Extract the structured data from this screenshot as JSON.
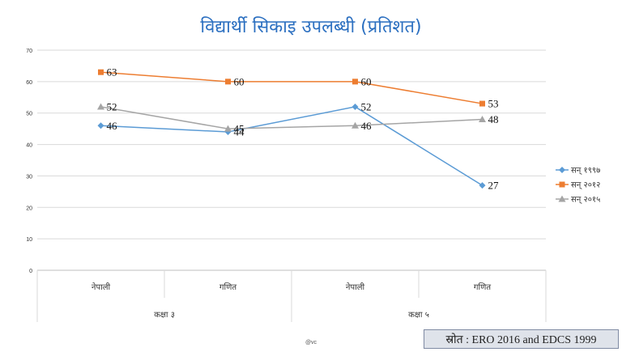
{
  "chart_data": {
    "type": "line",
    "title": "विद्यार्थी सिकाइ उपलब्धी (प्रतिशत)",
    "ylim": [
      0,
      70
    ],
    "yticks": [
      "0",
      "10",
      "20",
      "30",
      "40",
      "50",
      "60",
      "70"
    ],
    "grid": true,
    "legend_position": "right",
    "categories": [
      "नेपाली",
      "गणित",
      "नेपाली",
      "गणित"
    ],
    "groups": [
      {
        "label": "कक्षा ३",
        "span": 2
      },
      {
        "label": "कक्षा ५",
        "span": 2
      }
    ],
    "series": [
      {
        "name": "सन् १९९७",
        "values": [
          46,
          44,
          52,
          27
        ],
        "color": "#5b9bd5",
        "marker": "diamond"
      },
      {
        "name": "सन् २०१२",
        "values": [
          63,
          60,
          60,
          53
        ],
        "color": "#ed7d31",
        "marker": "square"
      },
      {
        "name": "सन् २०१५",
        "values": [
          52,
          45,
          46,
          48
        ],
        "color": "#a5a5a5",
        "marker": "triangle"
      }
    ]
  },
  "footer": {
    "credit": "@vc",
    "source": "स्रोत : ERO 2016 and EDCS 1999"
  }
}
